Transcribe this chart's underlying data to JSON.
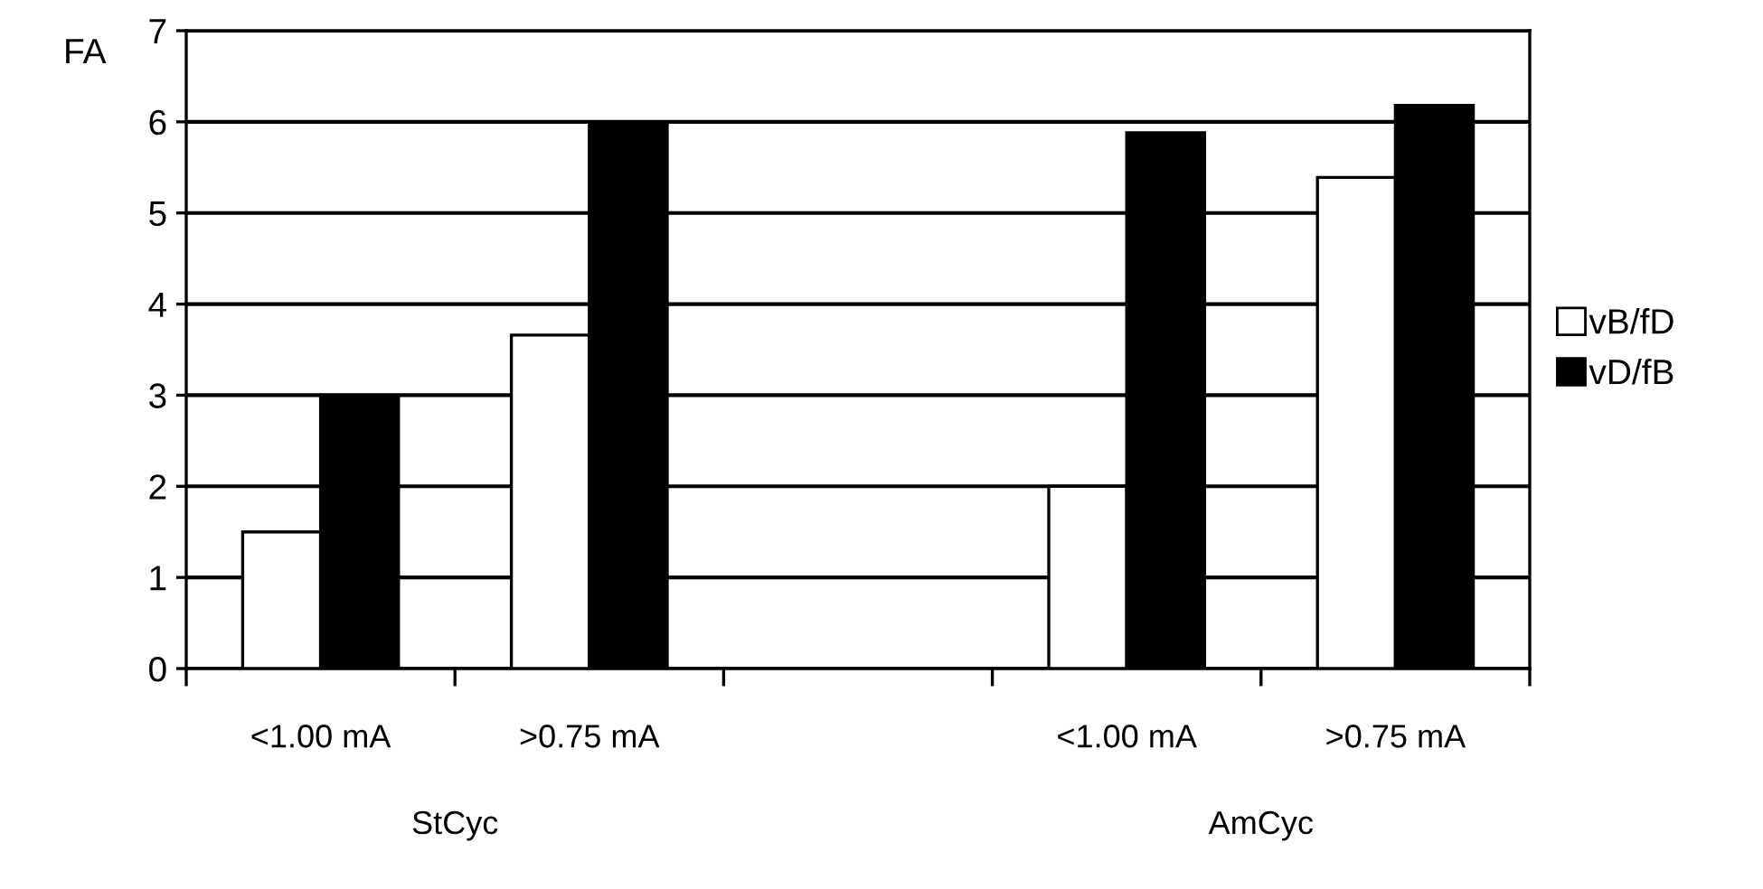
{
  "chart_data": {
    "type": "bar",
    "ylabel": "FA",
    "categories": [
      "<1.00 mA",
      ">0.75 mA",
      null,
      "<1.00 mA",
      ">0.75 mA"
    ],
    "series": [
      {
        "name": "vB/fD",
        "color": "#ffffff",
        "values": [
          1.5,
          3.66,
          null,
          2.0,
          5.39
        ]
      },
      {
        "name": "vD/fB",
        "color": "#000000",
        "values": [
          3.0,
          6.0,
          null,
          5.88,
          6.18
        ]
      }
    ],
    "ylim": [
      0,
      7
    ],
    "yticks": [
      0,
      1,
      2,
      3,
      4,
      5,
      6,
      7
    ],
    "grid": "y",
    "legend": "right",
    "annotations": [
      "StCyc",
      "AmCyc"
    ]
  }
}
